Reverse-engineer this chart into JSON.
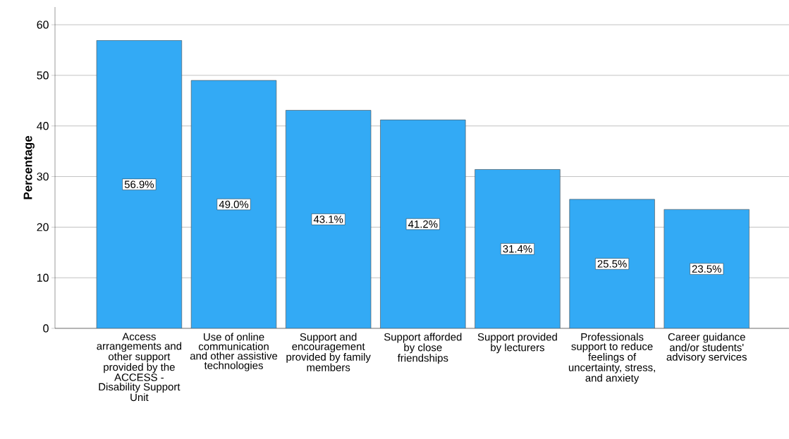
{
  "chart_data": {
    "type": "bar",
    "ylabel": "**Percentage**",
    "categories": [
      "Access arrangements and other support provided by the ACCESS - Disability Support Unit",
      "Use of online communication and other assistive technologies",
      "Support and encouragement provided by family members",
      "Support afforded by close friendships",
      "Support provided by lecturers",
      "Professionals support to reduce feelings of uncertainty, stress, and anxiety",
      "Career guidance and/or students' advisory services"
    ],
    "values": [
      56.9,
      49.0,
      43.1,
      41.2,
      31.4,
      25.5,
      23.5
    ],
    "value_labels": [
      "56.9%",
      "49.0%",
      "43.1%",
      "41.2%",
      "31.4%",
      "25.5%",
      "23.5%"
    ],
    "color": "#33aaf5",
    "ylim": [
      0,
      63.5
    ],
    "yticks": [
      0,
      10,
      20,
      30,
      40,
      50,
      60
    ],
    "grid": "y"
  }
}
